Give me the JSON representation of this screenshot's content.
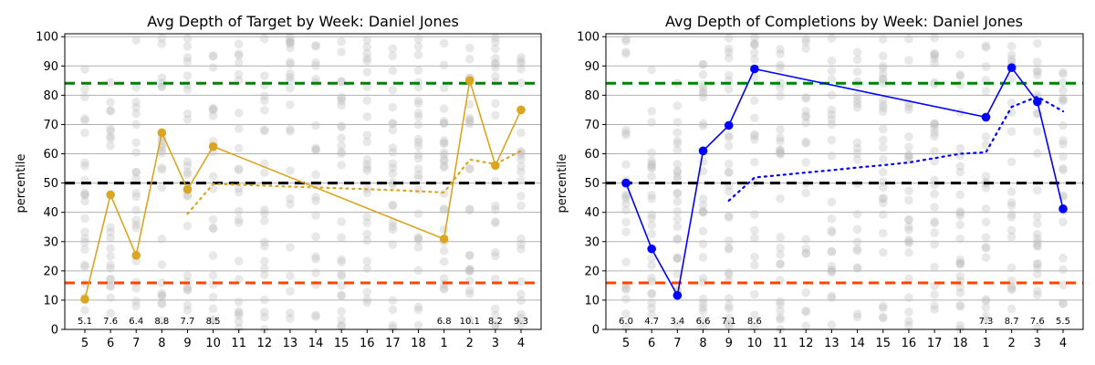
{
  "chart_data": [
    {
      "type": "line",
      "title": "Avg Depth of Target by Week: Daniel Jones",
      "xlabel": "",
      "ylabel": "percentile",
      "ylim": [
        0,
        101
      ],
      "yticks": [
        "0",
        "10",
        "20",
        "30",
        "40",
        "50",
        "60",
        "70",
        "80",
        "90",
        "100"
      ],
      "grid": "horizontal",
      "categories": [
        "5",
        "6",
        "7",
        "8",
        "9",
        "10",
        "11",
        "12",
        "13",
        "14",
        "15",
        "16",
        "17",
        "18",
        "1",
        "2",
        "3",
        "4"
      ],
      "color": "#DAA520",
      "series": [
        {
          "name": "weekly",
          "style": "solid-markers",
          "values": [
            10.3,
            46,
            25.3,
            67.2,
            47.8,
            62.5,
            null,
            null,
            null,
            null,
            null,
            null,
            null,
            null,
            30.9,
            85,
            56,
            75
          ]
        },
        {
          "name": "rolling",
          "style": "dotted",
          "values": [
            null,
            null,
            null,
            null,
            39.5,
            49.7,
            49.4,
            49.1,
            48.8,
            48.5,
            48.2,
            47.9,
            47.6,
            47.2,
            46.8,
            58,
            56.5,
            61
          ]
        }
      ],
      "reference_lines": [
        {
          "name": "p84",
          "value": 84.1,
          "color": "#008000"
        },
        {
          "name": "p50",
          "value": 50,
          "color": "#000000"
        },
        {
          "name": "p16",
          "value": 15.9,
          "color": "#FF4500"
        }
      ],
      "annotations": [
        "5.1",
        "7.6",
        "6.4",
        "8.8",
        "7.7",
        "8.5",
        "",
        "",
        "",
        "",
        "",
        "",
        "",
        "",
        "6.8",
        "10.1",
        "8.2",
        "9.3"
      ]
    },
    {
      "type": "line",
      "title": "Avg Depth of Completions by Week: Daniel Jones",
      "xlabel": "",
      "ylabel": "percentile",
      "ylim": [
        0,
        101
      ],
      "yticks": [
        "0",
        "10",
        "20",
        "30",
        "40",
        "50",
        "60",
        "70",
        "80",
        "90",
        "100"
      ],
      "grid": "horizontal",
      "categories": [
        "5",
        "6",
        "7",
        "8",
        "9",
        "10",
        "11",
        "12",
        "13",
        "14",
        "15",
        "16",
        "17",
        "18",
        "1",
        "2",
        "3",
        "4"
      ],
      "color": "#0000FF",
      "series": [
        {
          "name": "weekly",
          "style": "solid-markers",
          "values": [
            50,
            27.5,
            11.6,
            61,
            69.7,
            89,
            null,
            null,
            null,
            null,
            null,
            null,
            null,
            null,
            72.5,
            89.4,
            77.8,
            41.2
          ]
        },
        {
          "name": "rolling",
          "style": "dotted",
          "values": [
            null,
            null,
            null,
            null,
            44,
            51.9,
            52.7,
            53.6,
            54.4,
            55.3,
            56.1,
            57,
            58.5,
            60,
            60.5,
            76,
            79.5,
            74.5
          ]
        }
      ],
      "reference_lines": [
        {
          "name": "p84",
          "value": 84.1,
          "color": "#008000"
        },
        {
          "name": "p50",
          "value": 50,
          "color": "#000000"
        },
        {
          "name": "p16",
          "value": 15.9,
          "color": "#FF4500"
        }
      ],
      "annotations": [
        "6.0",
        "4.7",
        "3.4",
        "6.6",
        "7.1",
        "8.6",
        "",
        "",
        "",
        "",
        "",
        "",
        "",
        "",
        "7.3",
        "8.7",
        "7.6",
        "5.5"
      ]
    }
  ]
}
